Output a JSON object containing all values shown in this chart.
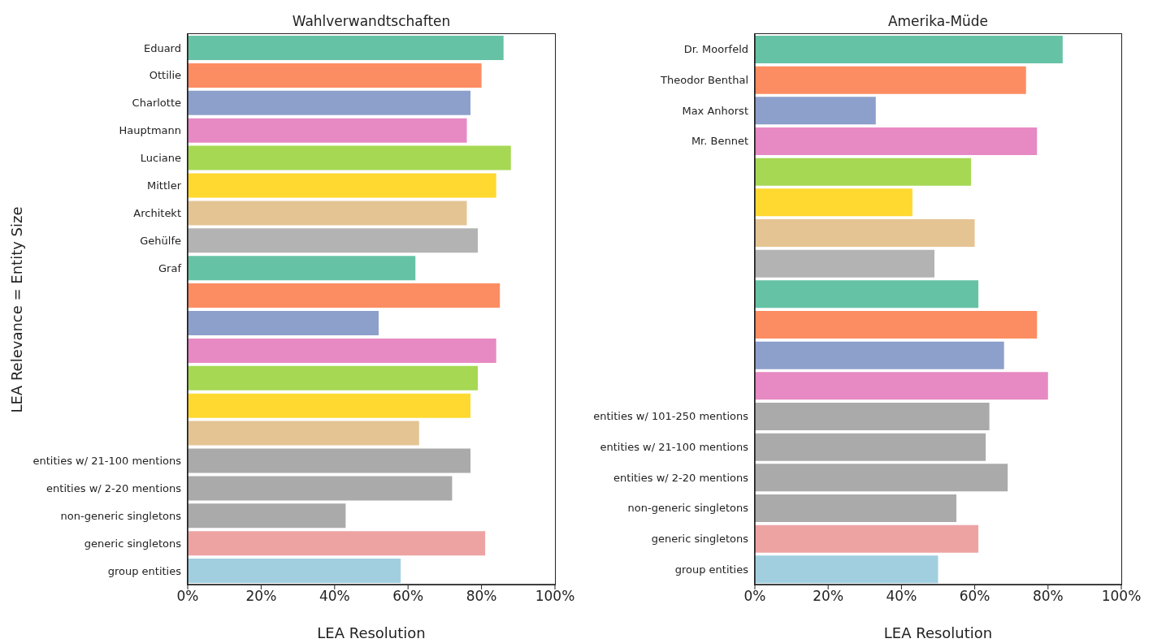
{
  "chart_data": [
    {
      "type": "bar",
      "orientation": "horizontal",
      "title": "Wahlverwandtschaften",
      "xlabel": "LEA Resolution",
      "ylabel": "LEA Relevance = Entity Size",
      "categories": [
        "Eduard",
        "Ottilie",
        "Charlotte",
        "Hauptmann",
        "Luciane",
        "Mittler",
        "Architekt",
        "Gehülfe",
        "Graf",
        null,
        null,
        null,
        null,
        null,
        null,
        "entities w/ 21-100 mentions",
        "entities w/ 2-20 mentions",
        "non-generic singletons",
        "generic singletons",
        "group entities"
      ],
      "values": [
        86,
        80,
        77,
        76,
        88,
        84,
        76,
        79,
        62,
        85,
        52,
        84,
        79,
        77,
        63,
        77,
        72,
        43,
        81,
        58
      ],
      "colors": [
        "#66c2a5",
        "#fc8d62",
        "#8da0cb",
        "#e78ac3",
        "#a6d854",
        "#ffd92f",
        "#e5c494",
        "#b3b3b3",
        "#66c2a5",
        "#fc8d62",
        "#8da0cb",
        "#e78ac3",
        "#a6d854",
        "#ffd92f",
        "#e5c494",
        "#aaaaaa",
        "#aaaaaa",
        "#aaaaaa",
        "#eea3a3",
        "#a1cfdf"
      ],
      "xlim": [
        0,
        100
      ],
      "xticks": [
        {
          "value": 0,
          "label": "0%"
        },
        {
          "value": 20,
          "label": "20%"
        },
        {
          "value": 40,
          "label": "40%"
        },
        {
          "value": 60,
          "label": "60%"
        },
        {
          "value": 80,
          "label": "80%"
        },
        {
          "value": 100,
          "label": "100%"
        }
      ]
    },
    {
      "type": "bar",
      "orientation": "horizontal",
      "title": "Amerika-Müde",
      "xlabel": "LEA Resolution",
      "categories": [
        "Dr. Moorfeld",
        "Theodor Benthal",
        "Max Anhorst",
        "Mr. Bennet",
        null,
        null,
        null,
        null,
        null,
        null,
        null,
        null,
        "entities w/ 101-250 mentions",
        "entities w/ 21-100 mentions",
        "entities w/ 2-20 mentions",
        "non-generic singletons",
        "generic singletons",
        "group entities"
      ],
      "values": [
        84,
        74,
        33,
        77,
        59,
        43,
        60,
        49,
        61,
        77,
        68,
        80,
        64,
        63,
        69,
        55,
        61,
        50
      ],
      "colors": [
        "#66c2a5",
        "#fc8d62",
        "#8da0cb",
        "#e78ac3",
        "#a6d854",
        "#ffd92f",
        "#e5c494",
        "#b3b3b3",
        "#66c2a5",
        "#fc8d62",
        "#8da0cb",
        "#e78ac3",
        "#aaaaaa",
        "#aaaaaa",
        "#aaaaaa",
        "#aaaaaa",
        "#eea3a3",
        "#a1cfdf"
      ],
      "xlim": [
        0,
        100
      ],
      "xticks": [
        {
          "value": 0,
          "label": "0%"
        },
        {
          "value": 20,
          "label": "20%"
        },
        {
          "value": 40,
          "label": "40%"
        },
        {
          "value": 60,
          "label": "60%"
        },
        {
          "value": 80,
          "label": "80%"
        },
        {
          "value": 100,
          "label": "100%"
        }
      ]
    }
  ]
}
